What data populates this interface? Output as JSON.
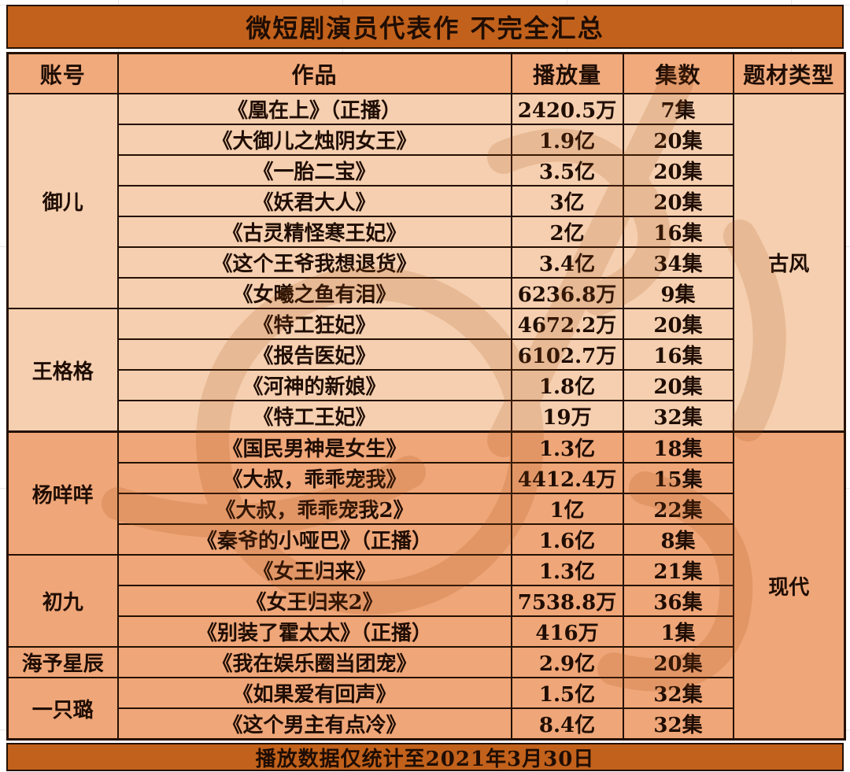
{
  "title": "微短剧演员代表作 不完全汇总",
  "footer": "播放数据仅统计至2021年3月30日",
  "columns": [
    "账号",
    "作品",
    "播放量",
    "集数",
    "题材类型"
  ],
  "genres": [
    {
      "label": "古风",
      "row_span": 11
    },
    {
      "label": "现代",
      "row_span": 10
    }
  ],
  "groups": [
    {
      "account": "御儿",
      "works": [
        {
          "title": "《凰在上》（正播）",
          "plays": "2420.5万",
          "episodes": "7集"
        },
        {
          "title": "《大御儿之烛阴女王》",
          "plays": "1.9亿",
          "episodes": "20集"
        },
        {
          "title": "《一胎二宝》",
          "plays": "3.5亿",
          "episodes": "20集"
        },
        {
          "title": "《妖君大人》",
          "plays": "3亿",
          "episodes": "20集"
        },
        {
          "title": "《古灵精怪寒王妃》",
          "plays": "2亿",
          "episodes": "16集"
        },
        {
          "title": "《这个王爷我想退货》",
          "plays": "3.4亿",
          "episodes": "34集"
        },
        {
          "title": "《女曦之鱼有泪》",
          "plays": "6236.8万",
          "episodes": "9集"
        }
      ]
    },
    {
      "account": "王格格",
      "works": [
        {
          "title": "《特工狂妃》",
          "plays": "4672.2万",
          "episodes": "20集"
        },
        {
          "title": "《报告医妃》",
          "plays": "6102.7万",
          "episodes": "16集"
        },
        {
          "title": "《河神的新娘》",
          "plays": "1.8亿",
          "episodes": "20集"
        },
        {
          "title": "《特工王妃》",
          "plays": "19万",
          "episodes": "32集"
        }
      ]
    },
    {
      "account": "杨咩咩",
      "works": [
        {
          "title": "《国民男神是女生》",
          "plays": "1.3亿",
          "episodes": "18集"
        },
        {
          "title": "《大叔，乖乖宠我》",
          "plays": "4412.4万",
          "episodes": "15集"
        },
        {
          "title": "《大叔，乖乖宠我2》",
          "plays": "1亿",
          "episodes": "22集"
        },
        {
          "title": "《秦爷的小哑巴》（正播）",
          "plays": "1.6亿",
          "episodes": "8集"
        }
      ]
    },
    {
      "account": "初九",
      "works": [
        {
          "title": "《女王归来》",
          "plays": "1.3亿",
          "episodes": "21集"
        },
        {
          "title": "《女王归来2》",
          "plays": "7538.8万",
          "episodes": "36集"
        },
        {
          "title": "《别装了霍太太》（正播）",
          "plays": "416万",
          "episodes": "1集"
        }
      ]
    },
    {
      "account": "海予星辰",
      "works": [
        {
          "title": "《我在娱乐圈当团宠》",
          "plays": "2.9亿",
          "episodes": "20集"
        }
      ]
    },
    {
      "account": "一只璐",
      "works": [
        {
          "title": "《如果爱有回声》",
          "plays": "1.5亿",
          "episodes": "32集"
        },
        {
          "title": "《这个男主有点冷》",
          "plays": "8.4亿",
          "episodes": "32集"
        }
      ]
    }
  ],
  "colors": {
    "title_bar": "#c2611b",
    "footer_bar": "#c2611b",
    "header_row": "#f0aa7c",
    "ancient_rows": "#f5cfaf",
    "modern_rows": "#efa678",
    "border": "#241103",
    "text": "#1f0d03"
  }
}
